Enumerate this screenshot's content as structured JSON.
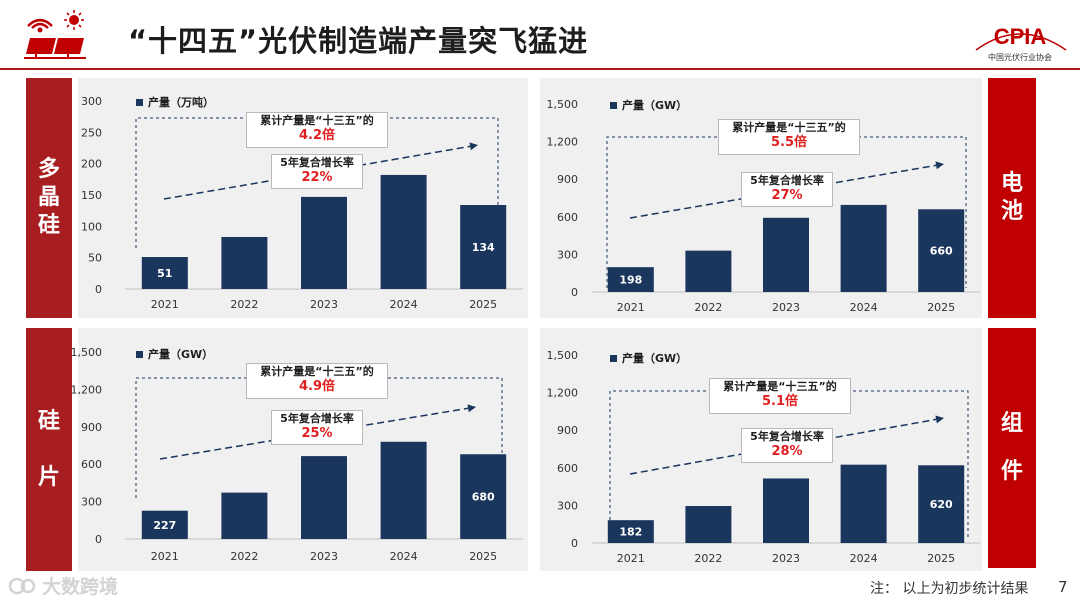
{
  "page": {
    "title": "“十四五”光伏制造端产量突飞猛进",
    "logo_text": "CPIA",
    "logo_subtitle": "中国光伏行业协会",
    "note": "注： 以上为初步统计结果",
    "page_number": "7",
    "watermark": "大数跨境"
  },
  "side_labels": {
    "polysilicon": [
      "多",
      "晶",
      "硅"
    ],
    "wafer": [
      "硅",
      "片"
    ],
    "cell": [
      "电",
      "池"
    ],
    "module": [
      "组",
      "件"
    ]
  },
  "colors": {
    "bar": "#1a365d",
    "accent": "#e02020",
    "side_dark": "#a81d20",
    "side_bright": "#c00000",
    "panel_bg": "#f0f0f0"
  },
  "chart_data": [
    {
      "id": "polysilicon",
      "type": "bar",
      "legend": "产量（万吨）",
      "categories": [
        "2021",
        "2022",
        "2023",
        "2024",
        "2025"
      ],
      "values": [
        51,
        83,
        147,
        182,
        134
      ],
      "bar_labels": [
        "51",
        "",
        "",
        "",
        "134"
      ],
      "ylim": [
        0,
        300
      ],
      "yticks": [
        0,
        50,
        100,
        150,
        200,
        250,
        300
      ],
      "ytick_labels": [
        "0",
        "50",
        "100",
        "150",
        "200",
        "250",
        "300"
      ],
      "callout_total": "累计产量是“十三五”的",
      "callout_total_value": "4.2倍",
      "callout_cagr": "5年复合增长率",
      "callout_cagr_value": "22%"
    },
    {
      "id": "cell",
      "type": "bar",
      "legend": "产量（GW）",
      "categories": [
        "2021",
        "2022",
        "2023",
        "2024",
        "2025"
      ],
      "values": [
        198,
        330,
        592,
        695,
        660
      ],
      "bar_labels": [
        "198",
        "",
        "",
        "",
        "660"
      ],
      "ylim": [
        0,
        1500
      ],
      "yticks": [
        0,
        300,
        600,
        900,
        1200,
        1500
      ],
      "ytick_labels": [
        "0",
        "300",
        "600",
        "900",
        "1,200",
        "1,500"
      ],
      "callout_total": "累计产量是“十三五”的",
      "callout_total_value": "5.5倍",
      "callout_cagr": "5年复合增长率",
      "callout_cagr_value": "27%"
    },
    {
      "id": "wafer",
      "type": "bar",
      "legend": "产量（GW）",
      "categories": [
        "2021",
        "2022",
        "2023",
        "2024",
        "2025"
      ],
      "values": [
        227,
        372,
        665,
        780,
        680
      ],
      "bar_labels": [
        "227",
        "",
        "",
        "",
        "680"
      ],
      "ylim": [
        0,
        1500
      ],
      "yticks": [
        0,
        300,
        600,
        900,
        1200,
        1500
      ],
      "ytick_labels": [
        "0",
        "300",
        "600",
        "900",
        "1,200",
        "1,500"
      ],
      "callout_total": "累计产量是“十三五”的",
      "callout_total_value": "4.9倍",
      "callout_cagr": "5年复合增长率",
      "callout_cagr_value": "25%"
    },
    {
      "id": "module",
      "type": "bar",
      "legend": "产量（GW）",
      "categories": [
        "2021",
        "2022",
        "2023",
        "2024",
        "2025"
      ],
      "values": [
        182,
        295,
        515,
        625,
        620
      ],
      "bar_labels": [
        "182",
        "",
        "",
        "",
        "620"
      ],
      "ylim": [
        0,
        1500
      ],
      "yticks": [
        0,
        300,
        600,
        900,
        1200,
        1500
      ],
      "ytick_labels": [
        "0",
        "300",
        "600",
        "900",
        "1,200",
        "1,500"
      ],
      "callout_total": "累计产量是“十三五”的",
      "callout_total_value": "5.1倍",
      "callout_cagr": "5年复合增长率",
      "callout_cagr_value": "28%"
    }
  ]
}
